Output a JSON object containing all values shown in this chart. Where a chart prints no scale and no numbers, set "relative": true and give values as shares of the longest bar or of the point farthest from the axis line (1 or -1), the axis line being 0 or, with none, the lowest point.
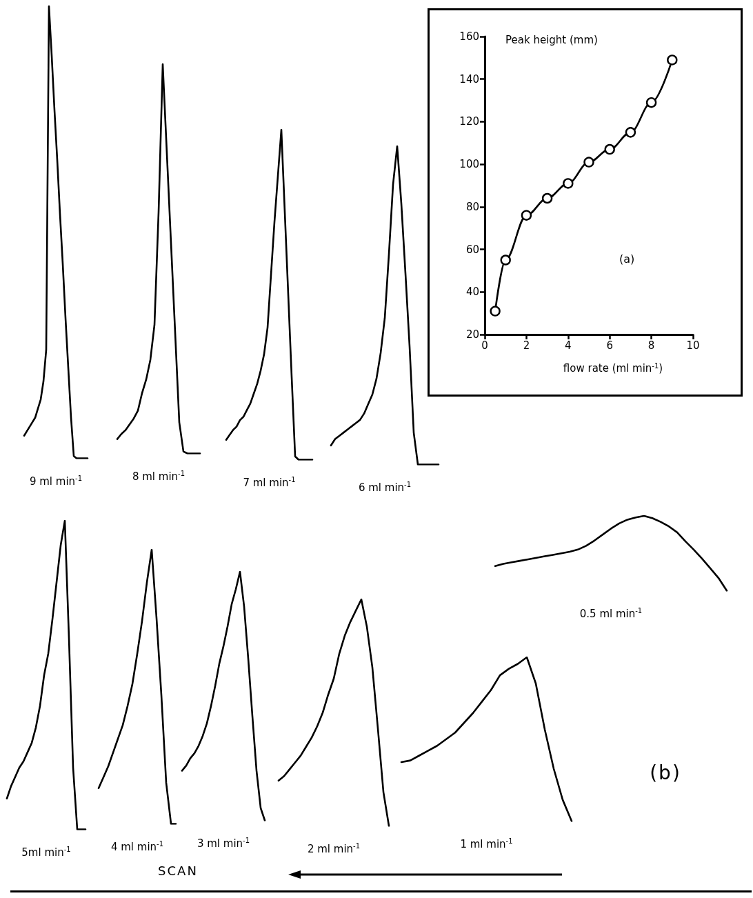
{
  "chart_data": [
    {
      "type": "line",
      "relative": true,
      "xlabel": "9 ml min$^{-1}$",
      "categories": [
        null,
        null,
        null,
        null,
        null,
        null,
        null,
        null,
        null,
        null,
        null,
        null,
        null,
        null,
        null,
        null,
        null,
        null,
        null,
        null,
        null,
        null,
        null,
        null
      ],
      "series": [
        {
          "color": "#000000",
          "values": [
            0.05,
            0.06,
            0.07,
            0.08,
            0.09,
            0.11,
            0.13,
            0.17,
            0.24,
            1.0,
            0.89,
            0.77,
            0.66,
            0.54,
            0.43,
            0.31,
            0.2,
            0.09,
            0.005,
            0,
            0,
            0,
            0,
            0
          ]
        }
      ]
    },
    {
      "type": "line",
      "relative": true,
      "xlabel": "8 ml min$^{-1}$",
      "categories": [
        null,
        null,
        null,
        null,
        null,
        null,
        null,
        null,
        null,
        null,
        null,
        null,
        null,
        null,
        null,
        null,
        null,
        null,
        null,
        null,
        null
      ],
      "series": [
        {
          "color": "#000000",
          "values": [
            0.037,
            0.05,
            0.06,
            0.075,
            0.09,
            0.11,
            0.155,
            0.19,
            0.24,
            0.33,
            0.62,
            1.0,
            0.77,
            0.54,
            0.31,
            0.08,
            0.005,
            0,
            0,
            0,
            0
          ]
        }
      ]
    },
    {
      "type": "line",
      "relative": true,
      "xlabel": "7 ml min$^{-1}$",
      "categories": [
        null,
        null,
        null,
        null,
        null,
        null,
        null,
        null,
        null,
        null,
        null,
        null,
        null,
        null,
        null,
        null,
        null,
        null,
        null,
        null,
        null,
        null,
        null,
        null,
        null,
        null
      ],
      "series": [
        {
          "color": "#000000",
          "values": [
            0.06,
            0.075,
            0.09,
            0.1,
            0.12,
            0.13,
            0.15,
            0.17,
            0.2,
            0.23,
            0.27,
            0.32,
            0.4,
            0.56,
            0.72,
            0.86,
            1.0,
            0.75,
            0.5,
            0.25,
            0.01,
            0,
            0,
            0,
            0,
            0
          ]
        }
      ]
    },
    {
      "type": "line",
      "relative": true,
      "xlabel": "6 ml min$^{-1}$",
      "categories": [
        null,
        null,
        null,
        null,
        null,
        null,
        null,
        null,
        null,
        null,
        null,
        null,
        null,
        null,
        null,
        null,
        null,
        null,
        null,
        null,
        null,
        null,
        null,
        null,
        null,
        null,
        null
      ],
      "series": [
        {
          "color": "#000000",
          "values": [
            0.06,
            0.08,
            0.09,
            0.1,
            0.11,
            0.12,
            0.13,
            0.14,
            0.16,
            0.19,
            0.22,
            0.27,
            0.35,
            0.46,
            0.66,
            0.88,
            1.0,
            0.82,
            0.6,
            0.37,
            0.1,
            0,
            0,
            0,
            0,
            0,
            0
          ]
        }
      ]
    },
    {
      "type": "line",
      "xlabel": "flow rate (ml min$^{-1}$)",
      "ylabel": "Peak height (mm)",
      "annotations": [
        "(a)"
      ],
      "x": [
        0.5,
        1,
        2,
        3,
        4,
        5,
        6,
        7,
        8,
        9
      ],
      "series": [
        {
          "color": "#000000",
          "values": [
            31,
            55,
            76,
            84,
            91,
            101,
            107,
            115,
            129,
            149
          ]
        }
      ],
      "marker": "circle",
      "xlim": [
        0,
        10
      ],
      "xticks": [
        0,
        2,
        4,
        6,
        8,
        10
      ],
      "ylim": [
        20,
        160
      ],
      "yticks": [
        20,
        40,
        60,
        80,
        100,
        120,
        140,
        160
      ]
    },
    {
      "type": "line",
      "relative": true,
      "xlabel": "5ml min$^{-1}$",
      "categories": [
        null,
        null,
        null,
        null,
        null,
        null,
        null,
        null,
        null,
        null,
        null,
        null,
        null,
        null,
        null,
        null,
        null,
        null,
        null,
        null
      ],
      "series": [
        {
          "color": "#000000",
          "values": [
            0.1,
            0.14,
            0.17,
            0.2,
            0.22,
            0.25,
            0.28,
            0.33,
            0.4,
            0.5,
            0.57,
            0.68,
            0.8,
            0.92,
            1.0,
            0.62,
            0.2,
            0,
            0,
            0
          ]
        }
      ]
    },
    {
      "type": "line",
      "relative": true,
      "xlabel": "4 ml min$^{-1}$",
      "categories": [
        null,
        null,
        null,
        null,
        null,
        null,
        null,
        null,
        null,
        null,
        null,
        null,
        null,
        null,
        null,
        null,
        null
      ],
      "series": [
        {
          "color": "#000000",
          "values": [
            0.13,
            0.17,
            0.21,
            0.26,
            0.31,
            0.36,
            0.43,
            0.51,
            0.62,
            0.74,
            0.88,
            1.0,
            0.75,
            0.47,
            0.15,
            0,
            0
          ]
        }
      ]
    },
    {
      "type": "line",
      "relative": true,
      "xlabel": "3 ml min$^{-1}$",
      "categories": [
        null,
        null,
        null,
        null,
        null,
        null,
        null,
        null,
        null,
        null,
        null,
        null,
        null,
        null,
        null,
        null,
        null,
        null,
        null,
        null,
        null
      ],
      "series": [
        {
          "color": "#000000",
          "values": [
            0.2,
            0.22,
            0.25,
            0.27,
            0.3,
            0.34,
            0.39,
            0.46,
            0.54,
            0.63,
            0.7,
            0.78,
            0.87,
            0.93,
            1.0,
            0.86,
            0.65,
            0.42,
            0.2,
            0.05,
            0
          ]
        }
      ]
    },
    {
      "type": "line",
      "relative": true,
      "xlabel": "2 ml min$^{-1}$",
      "categories": [
        null,
        null,
        null,
        null,
        null,
        null,
        null,
        null,
        null,
        null,
        null,
        null,
        null,
        null,
        null,
        null,
        null,
        null,
        null,
        null,
        null
      ],
      "series": [
        {
          "color": "#000000",
          "values": [
            0.2,
            0.22,
            0.25,
            0.28,
            0.31,
            0.35,
            0.39,
            0.44,
            0.5,
            0.58,
            0.65,
            0.76,
            0.84,
            0.9,
            0.95,
            1.0,
            0.88,
            0.7,
            0.43,
            0.15,
            0
          ]
        }
      ]
    },
    {
      "type": "line",
      "relative": true,
      "xlabel": "1 ml min$^{-1}$",
      "categories": [
        null,
        null,
        null,
        null,
        null,
        null,
        null,
        null,
        null,
        null,
        null,
        null,
        null,
        null,
        null,
        null,
        null,
        null,
        null,
        null
      ],
      "series": [
        {
          "color": "#000000",
          "values": [
            0.36,
            0.37,
            0.4,
            0.43,
            0.46,
            0.5,
            0.54,
            0.6,
            0.66,
            0.73,
            0.8,
            0.89,
            0.93,
            0.96,
            1.0,
            0.84,
            0.56,
            0.32,
            0.13,
            0
          ]
        }
      ]
    },
    {
      "type": "line",
      "relative": true,
      "xlabel": "0.5 ml min$^{-1}$",
      "categories": [
        null,
        null,
        null,
        null,
        null,
        null,
        null,
        null,
        null,
        null,
        null,
        null,
        null,
        null,
        null,
        null,
        null,
        null,
        null,
        null,
        null,
        null,
        null,
        null,
        null,
        null,
        null,
        null,
        null
      ],
      "series": [
        {
          "color": "#000000",
          "values": [
            0.33,
            0.36,
            0.38,
            0.4,
            0.42,
            0.44,
            0.46,
            0.48,
            0.5,
            0.52,
            0.55,
            0.6,
            0.67,
            0.75,
            0.83,
            0.9,
            0.95,
            0.98,
            1.0,
            0.97,
            0.92,
            0.86,
            0.78,
            0.66,
            0.55,
            0.43,
            0.3,
            0.17,
            0
          ]
        }
      ]
    },
    {
      "type": "other",
      "annotations": [
        "(b)",
        "SCAN"
      ]
    }
  ]
}
